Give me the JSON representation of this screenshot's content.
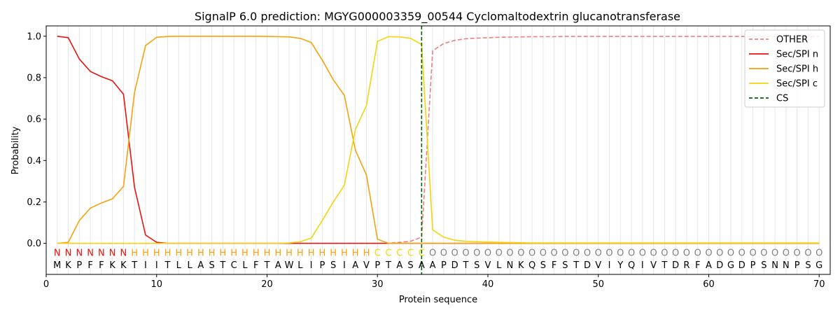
{
  "chart_data": {
    "type": "line",
    "title": "SignalP 6.0 prediction: MGYG000003359_00544 Cyclomaltodextrin glucanotransferase",
    "xlabel": "Protein sequence",
    "ylabel": "Probability",
    "xlim": [
      0,
      71
    ],
    "ylim": [
      -0.15,
      1.05
    ],
    "x_ticks": [
      0,
      10,
      20,
      30,
      40,
      50,
      60,
      70
    ],
    "y_ticks": [
      0.0,
      0.2,
      0.4,
      0.6,
      0.8,
      1.0
    ],
    "x_tick_labels": [
      "0",
      "10",
      "20",
      "30",
      "40",
      "50",
      "60",
      "70"
    ],
    "y_tick_labels": [
      "0.0",
      "0.2",
      "0.4",
      "0.6",
      "0.8",
      "1.0"
    ],
    "grid": "vertical lines at each residue",
    "legend_position": "top-right",
    "sequence": [
      "M",
      "K",
      "P",
      "F",
      "F",
      "K",
      "K",
      "T",
      "I",
      "I",
      "T",
      "L",
      "L",
      "A",
      "S",
      "T",
      "C",
      "L",
      "F",
      "T",
      "A",
      "W",
      "L",
      "I",
      "P",
      "S",
      "I",
      "A",
      "V",
      "P",
      "T",
      "A",
      "S",
      "A",
      "A",
      "P",
      "D",
      "T",
      "S",
      "V",
      "L",
      "N",
      "K",
      "Q",
      "S",
      "F",
      "S",
      "T",
      "D",
      "V",
      "I",
      "Y",
      "Q",
      "I",
      "V",
      "T",
      "D",
      "R",
      "F",
      "A",
      "D",
      "G",
      "D",
      "P",
      "S",
      "N",
      "N",
      "P",
      "S",
      "G"
    ],
    "labels": [
      "N",
      "N",
      "N",
      "N",
      "N",
      "N",
      "N",
      "H",
      "H",
      "H",
      "H",
      "H",
      "H",
      "H",
      "H",
      "H",
      "H",
      "H",
      "H",
      "H",
      "H",
      "H",
      "H",
      "H",
      "H",
      "H",
      "H",
      "H",
      "H",
      "C",
      "C",
      "C",
      "C",
      "C",
      "O",
      "O",
      "O",
      "O",
      "O",
      "O",
      "O",
      "O",
      "O",
      "O",
      "O",
      "O",
      "O",
      "O",
      "O",
      "O",
      "O",
      "O",
      "O",
      "O",
      "O",
      "O",
      "O",
      "O",
      "O",
      "O",
      "O",
      "O",
      "O",
      "O",
      "O",
      "O",
      "O",
      "O",
      "O",
      "O"
    ],
    "label_colors": {
      "N": "#e8120f",
      "H": "#f5a20c",
      "C": "#f5d40c",
      "O": "#808080"
    },
    "series": [
      {
        "name": "OTHER",
        "color": "#f08080",
        "dash": "dashed",
        "values": [
          0.0,
          0.0,
          0.0,
          0.0,
          0.0,
          0.0,
          0.0,
          0.0,
          0.0,
          0.0,
          0.0,
          0.0,
          0.0,
          0.0,
          0.0,
          0.0,
          0.0,
          0.0,
          0.0,
          0.0,
          0.0,
          0.0,
          0.0,
          0.0,
          0.0,
          0.0,
          0.0,
          0.0,
          0.0,
          0.0,
          0.0,
          0.005,
          0.01,
          0.03,
          0.93,
          0.965,
          0.98,
          0.988,
          0.991,
          0.993,
          0.995,
          0.996,
          0.997,
          0.998,
          0.998,
          0.998,
          0.999,
          0.999,
          0.999,
          0.999,
          0.999,
          0.999,
          0.999,
          0.999,
          0.999,
          0.999,
          0.999,
          0.999,
          0.999,
          0.999,
          0.999,
          0.999,
          0.999,
          0.999,
          0.999,
          0.999,
          0.999,
          0.999,
          0.999,
          0.999
        ]
      },
      {
        "name": "Sec/SPI n",
        "color": "#e8120f",
        "dash": "solid",
        "values": [
          1.0,
          0.993,
          0.89,
          0.83,
          0.805,
          0.785,
          0.72,
          0.27,
          0.04,
          0.005,
          0.0,
          0.0,
          0.0,
          0.0,
          0.0,
          0.0,
          0.0,
          0.0,
          0.0,
          0.0,
          0.0,
          0.0,
          0.0,
          0.0,
          0.0,
          0.0,
          0.0,
          0.0,
          0.0,
          0.0,
          0.0,
          0.0,
          0.0,
          0.0,
          0.0,
          0.0,
          0.0,
          0.0,
          0.0,
          0.0,
          0.0,
          0.0,
          0.0,
          0.0,
          0.0,
          0.0,
          0.0,
          0.0,
          0.0,
          0.0,
          0.0,
          0.0,
          0.0,
          0.0,
          0.0,
          0.0,
          0.0,
          0.0,
          0.0,
          0.0,
          0.0,
          0.0,
          0.0,
          0.0,
          0.0,
          0.0,
          0.0,
          0.0,
          0.0,
          0.0
        ]
      },
      {
        "name": "Sec/SPI h",
        "color": "#f5a20c",
        "dash": "solid",
        "values": [
          0.0,
          0.005,
          0.11,
          0.17,
          0.195,
          0.215,
          0.275,
          0.73,
          0.955,
          0.995,
          0.999,
          1.0,
          1.0,
          1.0,
          1.0,
          1.0,
          1.0,
          1.0,
          1.0,
          0.999,
          0.998,
          0.997,
          0.99,
          0.97,
          0.885,
          0.79,
          0.715,
          0.45,
          0.33,
          0.02,
          0.0,
          0.0,
          0.0,
          0.0,
          0.0,
          0.0,
          0.0,
          0.0,
          0.0,
          0.0,
          0.0,
          0.0,
          0.0,
          0.0,
          0.0,
          0.0,
          0.0,
          0.0,
          0.0,
          0.0,
          0.0,
          0.0,
          0.0,
          0.0,
          0.0,
          0.0,
          0.0,
          0.0,
          0.0,
          0.0,
          0.0,
          0.0,
          0.0,
          0.0,
          0.0,
          0.0,
          0.0,
          0.0,
          0.0,
          0.0
        ]
      },
      {
        "name": "Sec/SPI c",
        "color": "#f5d40c",
        "dash": "solid",
        "values": [
          0.0,
          0.0,
          0.0,
          0.0,
          0.0,
          0.0,
          0.0,
          0.0,
          0.0,
          0.0,
          0.0,
          0.0,
          0.0,
          0.0,
          0.0,
          0.0,
          0.0,
          0.0,
          0.0,
          0.0,
          0.0,
          0.002,
          0.008,
          0.025,
          0.11,
          0.2,
          0.28,
          0.55,
          0.665,
          0.975,
          0.998,
          0.997,
          0.99,
          0.96,
          0.065,
          0.03,
          0.015,
          0.01,
          0.008,
          0.006,
          0.005,
          0.004,
          0.003,
          0.002,
          0.002,
          0.002,
          0.002,
          0.002,
          0.002,
          0.002,
          0.002,
          0.002,
          0.002,
          0.002,
          0.002,
          0.002,
          0.002,
          0.002,
          0.002,
          0.002,
          0.002,
          0.002,
          0.002,
          0.002,
          0.002,
          0.002,
          0.002,
          0.002,
          0.002,
          0.002
        ]
      },
      {
        "name": "CS",
        "color": "#006400",
        "dash": "dashed",
        "vline_x": 34
      }
    ]
  }
}
